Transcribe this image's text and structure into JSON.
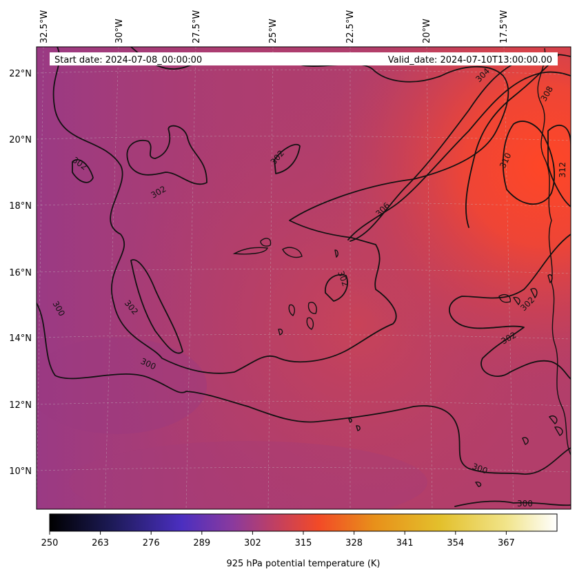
{
  "header": {
    "start_date": "Start date: 2024-07-08_00:00:00",
    "valid_date": "Valid_date: 2024-07-10T13:00:00.00"
  },
  "axes": {
    "lon_ticks": [
      "32.5°W",
      "30°W",
      "27.5°W",
      "25°W",
      "22.5°W",
      "20°W",
      "17.5°W"
    ],
    "lat_ticks": [
      "22°N",
      "20°N",
      "18°N",
      "16°N",
      "14°N",
      "12°N",
      "10°N"
    ]
  },
  "contour_labels": [
    "302",
    "302",
    "302",
    "302",
    "302",
    "302",
    "302",
    "300",
    "300",
    "300",
    "300",
    "304",
    "306",
    "308",
    "310",
    "312"
  ],
  "colorbar": {
    "ticks": [
      "250",
      "263",
      "276",
      "289",
      "302",
      "315",
      "328",
      "341",
      "354",
      "367"
    ],
    "label": "925 hPa potential temperature (K)",
    "colormap": "CMRmap-like",
    "colors": [
      "#000000",
      "#1f1a4d",
      "#4a2fb0",
      "#8a3a9e",
      "#c8405c",
      "#f04a2a",
      "#e8901a",
      "#e8c030",
      "#f3e68a",
      "#ffffff"
    ]
  },
  "field": {
    "base_color": "#b23e6a",
    "warm_color": "#ff4a26",
    "cool_color": "#9c3a80"
  }
}
